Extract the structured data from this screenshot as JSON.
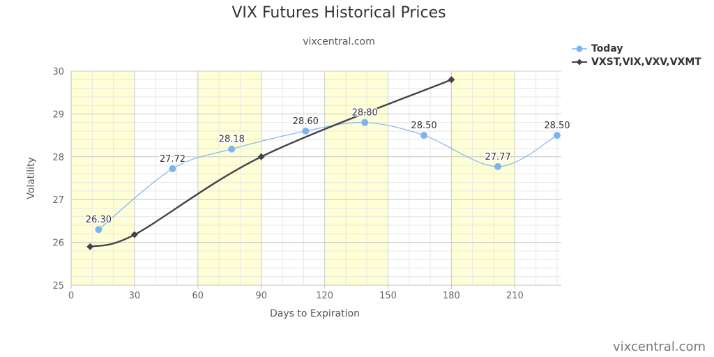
{
  "chart": {
    "title": "VIX Futures Historical Prices",
    "subtitle": "vixcentral.com",
    "credit": "vixcentral.com"
  },
  "chart_data": {
    "type": "line",
    "title": "VIX Futures Historical Prices",
    "subtitle": "vixcentral.com",
    "xlabel": "Days to Expiration",
    "ylabel": "Volatility",
    "xlim": [
      0,
      232
    ],
    "ylim": [
      25,
      30
    ],
    "xticks": [
      0,
      30,
      60,
      90,
      120,
      150,
      180,
      210
    ],
    "yticks": [
      25,
      26,
      27,
      28,
      29,
      30
    ],
    "grid": true,
    "legend_position": "top-right",
    "bands": [
      [
        0,
        30
      ],
      [
        60,
        90
      ],
      [
        120,
        150
      ],
      [
        180,
        210
      ]
    ],
    "series": [
      {
        "name": "Today",
        "color": "#7cb5ec",
        "marker": "circle",
        "smooth": true,
        "x": [
          13,
          48,
          76,
          111,
          139,
          167,
          202,
          230
        ],
        "y": [
          26.3,
          27.72,
          28.18,
          28.6,
          28.8,
          28.5,
          27.77,
          28.5
        ],
        "labels": [
          "26.30",
          "27.72",
          "28.18",
          "28.60",
          "28.80",
          "28.50",
          "27.77",
          "28.50"
        ]
      },
      {
        "name": "VXST,VIX,VXV,VXMT",
        "color": "#434348",
        "marker": "diamond",
        "smooth": true,
        "x": [
          9,
          30,
          90,
          180
        ],
        "y": [
          25.9,
          26.18,
          28.0,
          29.8
        ]
      }
    ]
  }
}
